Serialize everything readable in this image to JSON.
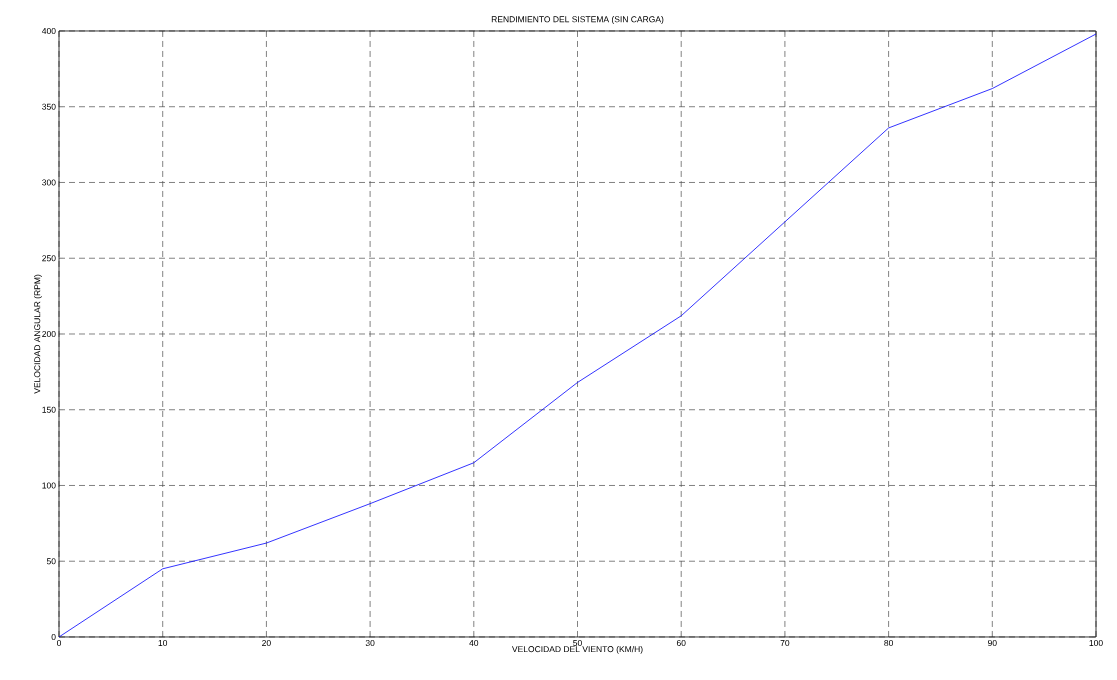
{
  "chart_data": {
    "type": "line",
    "title": "RENDIMIENTO DEL SISTEMA (SIN CARGA)",
    "xlabel": "VELOCIDAD DEL VIENTO (KM/H)",
    "ylabel": "VELOCIDAD ANGULAR (RPM)",
    "x": [
      0,
      10,
      20,
      30,
      40,
      50,
      60,
      70,
      80,
      90,
      100
    ],
    "series": [
      {
        "color": "#0000ff",
        "values": [
          0,
          45,
          62,
          88,
          115,
          168,
          212,
          274,
          336,
          362,
          398
        ]
      }
    ],
    "xlim": [
      0,
      100
    ],
    "ylim": [
      0,
      400
    ],
    "xticks": [
      0,
      10,
      20,
      30,
      40,
      50,
      60,
      70,
      80,
      90,
      100
    ],
    "yticks": [
      0,
      50,
      100,
      150,
      200,
      250,
      300,
      350,
      400
    ],
    "grid": true,
    "legend": false,
    "marker": "none",
    "line_style": "solid"
  }
}
